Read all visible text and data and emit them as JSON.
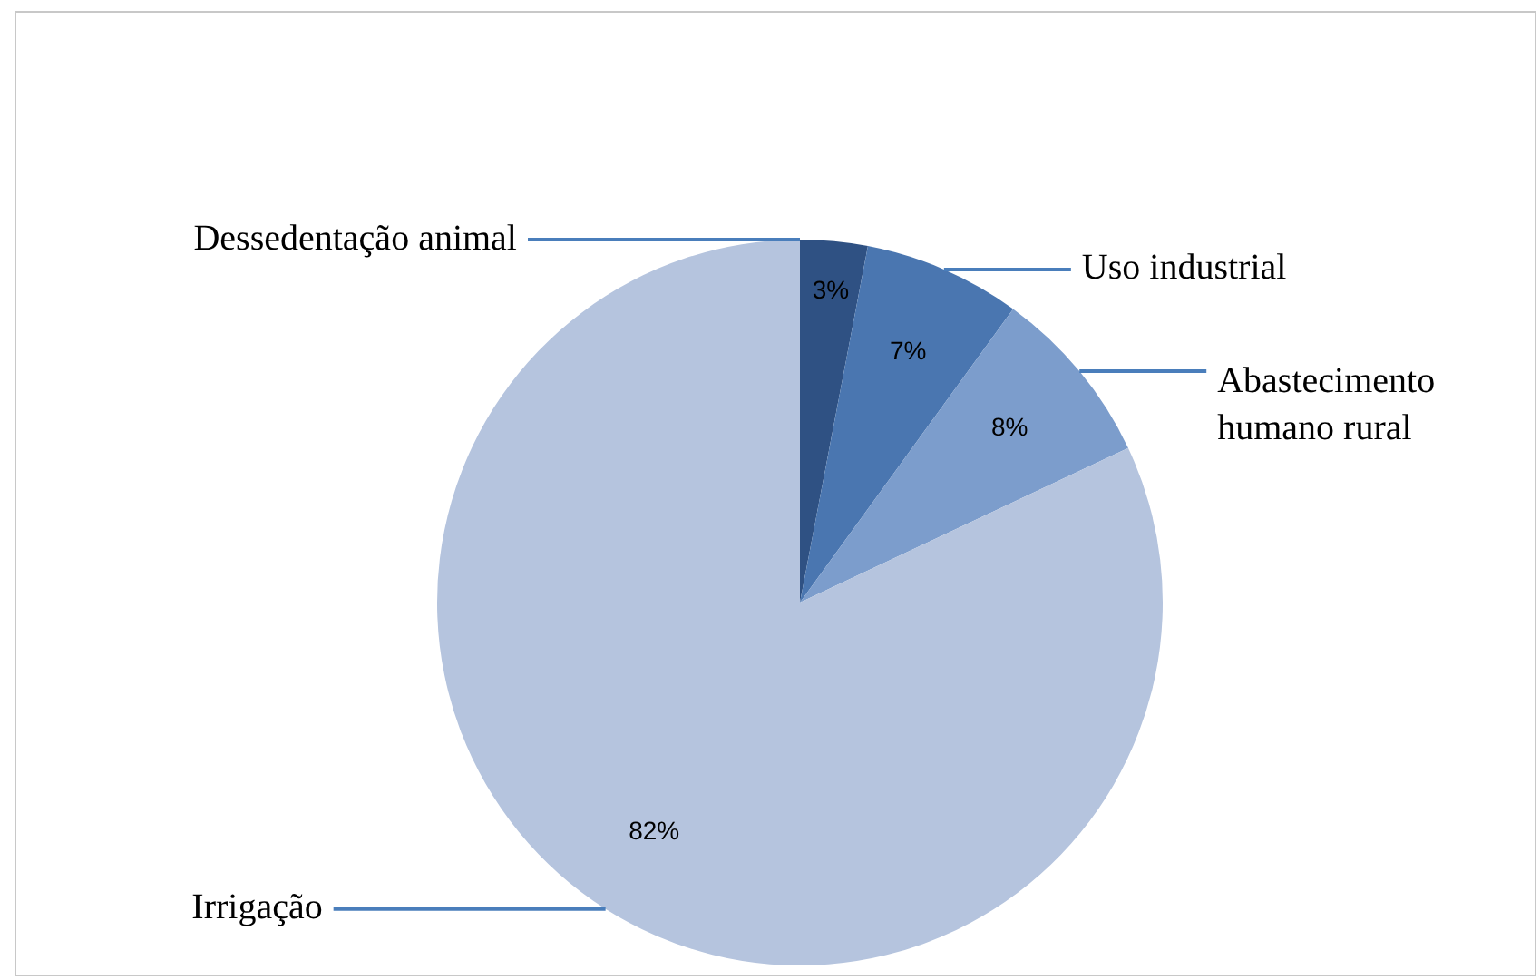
{
  "chart_data": {
    "type": "pie",
    "categories": [
      "Dessedentação animal",
      "Uso industrial",
      "Abastecimento humano rural",
      "Irrigação"
    ],
    "values": [
      3,
      7,
      8,
      82
    ],
    "colors": [
      "#2f5183",
      "#4a76b0",
      "#7c9dcc",
      "#b5c4de"
    ],
    "value_labels": [
      "3%",
      "7%",
      "8%",
      "82%"
    ],
    "legend": false
  }
}
